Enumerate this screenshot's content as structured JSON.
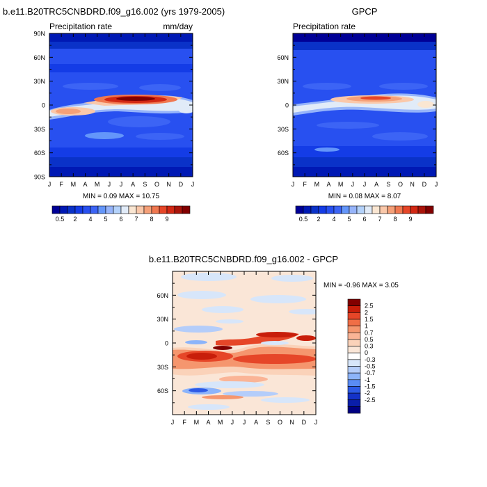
{
  "chart_data": [
    {
      "type": "heatmap",
      "title": "b.e11.B20TRC5CNBDRD.f09_g16.002 (yrs 1979-2005)",
      "left_label": "Precipitation rate",
      "right_label": "mm/day",
      "x_categories": [
        "J",
        "F",
        "M",
        "A",
        "M",
        "J",
        "J",
        "A",
        "S",
        "O",
        "N",
        "D",
        "J"
      ],
      "y_tick_labels": [
        "90N",
        "60N",
        "30N",
        "0",
        "30S",
        "60S",
        "90S"
      ],
      "y_tick_lats": [
        90,
        60,
        30,
        0,
        -30,
        -60,
        -90
      ],
      "ylim": [
        -90,
        90
      ],
      "min_max_text": "MIN =  0.09 MAX =  10.75",
      "min": 0.09,
      "max": 10.75,
      "colorbar_orientation": "horizontal",
      "colorbar_labels": [
        "0.5",
        "2",
        "4",
        "5",
        "6",
        "7",
        "8",
        "9"
      ],
      "colorbar_label_index": [
        1,
        3,
        5,
        7,
        9,
        11,
        13,
        15
      ],
      "colors": [
        "#000096",
        "#0019b4",
        "#0a32c8",
        "#143ce6",
        "#2850f0",
        "#3c64f5",
        "#6496fa",
        "#96b4fa",
        "#b4d2fa",
        "#e1ebf8",
        "#fae6d2",
        "#fac8aa",
        "#f5a078",
        "#f07850",
        "#e64628",
        "#d22814",
        "#aa140a",
        "#820000"
      ]
    },
    {
      "type": "heatmap",
      "title": "GPCP",
      "left_label": "Precipitation rate",
      "x_categories": [
        "J",
        "F",
        "M",
        "A",
        "M",
        "J",
        "J",
        "A",
        "S",
        "O",
        "N",
        "D",
        "J"
      ],
      "y_tick_labels": [
        "60N",
        "30N",
        "0",
        "30S",
        "60S"
      ],
      "y_tick_lats": [
        60,
        30,
        0,
        -30,
        -60
      ],
      "ylim": [
        -90,
        90
      ],
      "min_max_text": "MIN =  0.08 MAX =  8.07",
      "min": 0.08,
      "max": 8.07,
      "colorbar_orientation": "horizontal",
      "colorbar_labels": [
        "0.5",
        "2",
        "4",
        "5",
        "6",
        "7",
        "8",
        "9"
      ],
      "colorbar_label_index": [
        1,
        3,
        5,
        7,
        9,
        11,
        13,
        15
      ]
    },
    {
      "type": "heatmap",
      "title": "b.e11.B20TRC5CNBDRD.f09_g16.002 - GPCP",
      "x_categories": [
        "J",
        "F",
        "M",
        "A",
        "M",
        "J",
        "J",
        "A",
        "S",
        "O",
        "N",
        "D",
        "J"
      ],
      "y_tick_labels": [
        "60N",
        "30N",
        "0",
        "30S",
        "60S"
      ],
      "y_tick_lats": [
        60,
        30,
        0,
        -30,
        -60
      ],
      "ylim": [
        -90,
        90
      ],
      "min_max_text": "MIN =  -0.96 MAX =   3.05",
      "min": -0.96,
      "max": 3.05,
      "colorbar_orientation": "vertical",
      "colorbar_labels": [
        "2.5",
        "2",
        "1.5",
        "1",
        "0.7",
        "0.5",
        "0.3",
        "0",
        "-0.3",
        "-0.5",
        "-0.7",
        "-1",
        "-1.5",
        "-2",
        "-2.5"
      ],
      "colors": [
        "#820000",
        "#c81e0a",
        "#e64628",
        "#f06e46",
        "#f5966e",
        "#fab496",
        "#fad2b9",
        "#fae6d7",
        "#ffffff",
        "#d7e6fa",
        "#b4cdfa",
        "#8cb4fa",
        "#5a8cf5",
        "#2d5ae6",
        "#1432c8",
        "#0a1eaa",
        "#000082"
      ]
    }
  ]
}
